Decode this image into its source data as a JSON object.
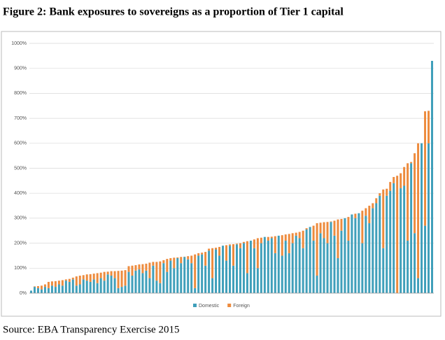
{
  "chart_data": {
    "type": "stacked_bar",
    "title": "Figure 2: Bank exposures to sovereigns as a proportion of Tier 1 capital",
    "source": "Source: EBA Transparency Exercise 2015",
    "categories": [
      null,
      null,
      null,
      null,
      null,
      null,
      null,
      null,
      null,
      null,
      null,
      null,
      null,
      null,
      null,
      null,
      null,
      null,
      null,
      null,
      null,
      null,
      null,
      null,
      null,
      null,
      null,
      null,
      null,
      null,
      null,
      null,
      null,
      null,
      null,
      null,
      null,
      null,
      null,
      null,
      null,
      null,
      null,
      null,
      null,
      null,
      null,
      null,
      null,
      null,
      null,
      null,
      null,
      null,
      null,
      null,
      null,
      null,
      null,
      null,
      null,
      null,
      null,
      null,
      null,
      null,
      null,
      null,
      null,
      null,
      null,
      null,
      null,
      null,
      null,
      null,
      null,
      null,
      null,
      null,
      null,
      null,
      null,
      null,
      null,
      null,
      null,
      null,
      null,
      null,
      null,
      null,
      null,
      null,
      null,
      null,
      null,
      null,
      null,
      null,
      null,
      null,
      null,
      null,
      null,
      null,
      null,
      null,
      null,
      null,
      null,
      null,
      null,
      null,
      null,
      null
    ],
    "series": [
      {
        "name": "Domestic",
        "color": "#3f9fba",
        "values": [
          10,
          25,
          20,
          15,
          25,
          20,
          30,
          25,
          35,
          30,
          50,
          45,
          55,
          30,
          35,
          55,
          50,
          45,
          55,
          40,
          60,
          50,
          75,
          70,
          60,
          20,
          25,
          30,
          85,
          70,
          90,
          95,
          80,
          90,
          60,
          110,
          50,
          40,
          120,
          85,
          130,
          100,
          140,
          120,
          145,
          135,
          120,
          20,
          150,
          155,
          110,
          170,
          60,
          175,
          150,
          190,
          130,
          190,
          110,
          195,
          180,
          200,
          80,
          210,
          180,
          100,
          200,
          225,
          210,
          220,
          160,
          230,
          150,
          210,
          160,
          200,
          230,
          220,
          180,
          255,
          265,
          210,
          70,
          240,
          220,
          200,
          285,
          230,
          140,
          250,
          300,
          210,
          315,
          300,
          320,
          200,
          310,
          280,
          340,
          360,
          390,
          180,
          390,
          410,
          440,
          0,
          420,
          430,
          210,
          520,
          240,
          60,
          600,
          270,
          600,
          930
        ]
      },
      {
        "name": "Foreign",
        "color": "#ed8b3d",
        "values": [
          0,
          2,
          8,
          15,
          10,
          25,
          17,
          23,
          15,
          22,
          5,
          12,
          7,
          37,
          35,
          17,
          25,
          31,
          23,
          40,
          22,
          35,
          11,
          18,
          28,
          69,
          65,
          62,
          23,
          40,
          22,
          20,
          36,
          28,
          62,
          15,
          75,
          87,
          12,
          52,
          10,
          42,
          3,
          25,
          1,
          13,
          30,
          135,
          10,
          7,
          55,
          8,
          120,
          7,
          35,
          0,
          62,
          5,
          86,
          3,
          20,
          5,
          128,
          0,
          35,
          120,
          22,
          0,
          15,
          6,
          68,
          0,
          82,
          25,
          77,
          40,
          12,
          25,
          70,
          5,
          0,
          60,
          210,
          42,
          64,
          85,
          2,
          60,
          155,
          47,
          0,
          95,
          0,
          18,
          0,
          130,
          30,
          70,
          20,
          20,
          10,
          235,
          28,
          35,
          25,
          470,
          60,
          75,
          310,
          5,
          320,
          540,
          0,
          458,
          130,
          0
        ]
      }
    ],
    "ylim": [
      0,
      1000
    ],
    "yticks": [
      {
        "value": 0,
        "label": "0%"
      },
      {
        "value": 100,
        "label": "100%"
      },
      {
        "value": 200,
        "label": "200%"
      },
      {
        "value": 300,
        "label": "300%"
      },
      {
        "value": 400,
        "label": "400%"
      },
      {
        "value": 500,
        "label": "500%"
      },
      {
        "value": 600,
        "label": "600%"
      },
      {
        "value": 700,
        "label": "700%"
      },
      {
        "value": 800,
        "label": "800%"
      },
      {
        "value": 900,
        "label": "900%"
      },
      {
        "value": 1000,
        "label": "1000%"
      }
    ],
    "grid": true,
    "legend": "bottom"
  }
}
